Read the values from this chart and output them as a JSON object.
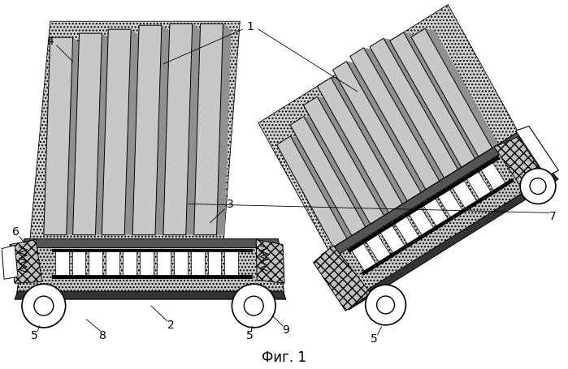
{
  "title": "Фиг. 1",
  "title_fontsize": 12,
  "bg_color": "#ffffff"
}
